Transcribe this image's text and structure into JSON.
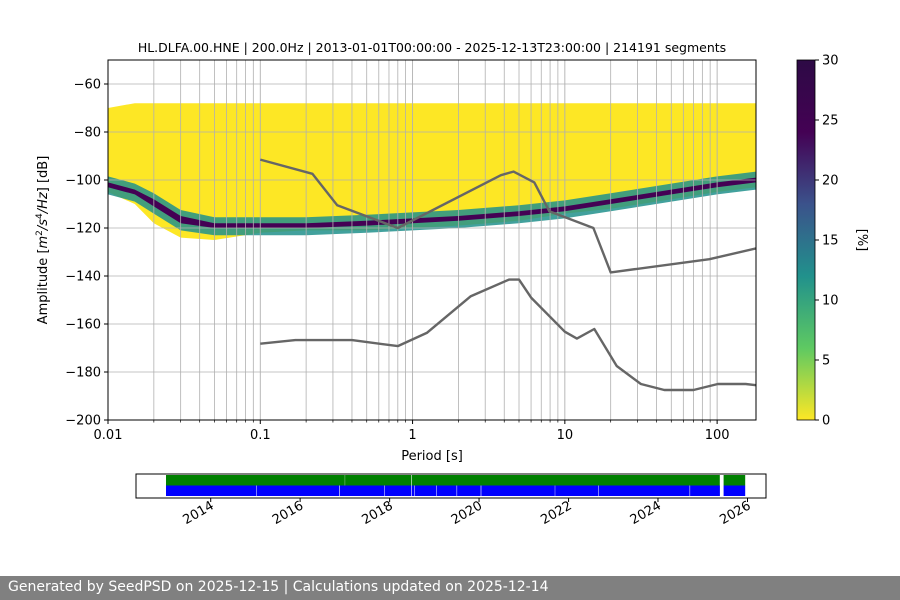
{
  "chart_data": [
    {
      "type": "heatmap",
      "title": "HL.DLFA.00.HNE | 200.0Hz | 2013-01-01T00:00:00 - 2025-12-13T23:00:00 | 214191 segments",
      "xlabel": "Period [s]",
      "ylabel": "Amplitude [m²/s⁴/Hz] [dB]",
      "xscale": "log",
      "xlim": [
        0.01,
        180
      ],
      "ylim": [
        -200,
        -50
      ],
      "x_ticks": [
        {
          "value": 0.01,
          "label": "0.01"
        },
        {
          "value": 0.1,
          "label": "0.1"
        },
        {
          "value": 1,
          "label": "1"
        },
        {
          "value": 10,
          "label": "10"
        },
        {
          "value": 100,
          "label": "100"
        }
      ],
      "y_ticks": [
        {
          "value": -60,
          "label": "−60"
        },
        {
          "value": -80,
          "label": "−80"
        },
        {
          "value": -100,
          "label": "−100"
        },
        {
          "value": -120,
          "label": "−120"
        },
        {
          "value": -140,
          "label": "−140"
        },
        {
          "value": -160,
          "label": "−160"
        },
        {
          "value": -180,
          "label": "−180"
        },
        {
          "value": -200,
          "label": "−200"
        }
      ],
      "grid": true,
      "colorbar": {
        "label": "[%]",
        "range": [
          0,
          30
        ],
        "ticks": [
          {
            "value": 0,
            "label": "0"
          },
          {
            "value": 5,
            "label": "5"
          },
          {
            "value": 10,
            "label": "10"
          },
          {
            "value": 15,
            "label": "15"
          },
          {
            "value": 20,
            "label": "20"
          },
          {
            "value": 25,
            "label": "25"
          },
          {
            "value": 30,
            "label": "30"
          }
        ],
        "colors": [
          "#fde725",
          "#5ec962",
          "#21918c",
          "#3b528b",
          "#440154",
          "#2d0a45"
        ]
      },
      "density_band": {
        "x": [
          0.01,
          0.015,
          0.02,
          0.03,
          0.05,
          0.1,
          0.2,
          0.5,
          1,
          2,
          5,
          10,
          20,
          50,
          100,
          180
        ],
        "upper": [
          -101,
          -104,
          -108,
          -115,
          -118,
          -118,
          -118,
          -117,
          -116,
          -115,
          -113,
          -111,
          -108,
          -104,
          -101,
          -99
        ],
        "lower": [
          -103,
          -106,
          -111,
          -118,
          -120,
          -120,
          -120,
          -119,
          -118,
          -117,
          -115,
          -113,
          -110,
          -106,
          -103,
          -101
        ],
        "yellow_top": [
          -70,
          -68,
          -68,
          -68,
          -68,
          -68,
          -68,
          -68,
          -68,
          -68,
          -68,
          -68,
          -68,
          -68,
          -68,
          -68
        ],
        "yellow_bottom": [
          -105,
          -110,
          -118,
          -124,
          -125,
          -122,
          -121,
          -121,
          -120,
          -119,
          -117,
          -114,
          -112,
          -108,
          -105,
          -103
        ]
      },
      "series": [
        {
          "type": "line",
          "color": "#666666",
          "x": [
            0.1,
            0.22,
            0.32,
            0.8,
            3.8,
            4.6,
            6.3,
            7.9,
            15.4,
            20,
            89,
            180
          ],
          "y": [
            -91.5,
            -97.4,
            -110.5,
            -120,
            -98,
            -96.5,
            -101,
            -113,
            -120,
            -138.5,
            -133,
            -128.5
          ]
        },
        {
          "type": "line",
          "color": "#666666",
          "x": [
            0.1,
            0.17,
            0.4,
            0.8,
            1.24,
            2.4,
            4.3,
            5.0,
            6.0,
            10,
            12,
            15.6,
            21.9,
            31.6,
            45,
            70,
            101,
            154,
            180
          ],
          "y": [
            -168.2,
            -166.7,
            -166.7,
            -169.2,
            -163.7,
            -148.5,
            -141.5,
            -141.5,
            -149,
            -163.2,
            -166.1,
            -162.1,
            -177.5,
            -185,
            -187.5,
            -187.5,
            -185,
            -185,
            -185.5
          ]
        }
      ]
    },
    {
      "type": "timeline",
      "xlim": [
        "2012-05-01",
        "2026-06-01"
      ],
      "x_ticks": [
        {
          "value": "2014-01-01",
          "label": "2014"
        },
        {
          "value": "2016-01-01",
          "label": "2016"
        },
        {
          "value": "2018-01-01",
          "label": "2018"
        },
        {
          "value": "2020-01-01",
          "label": "2020"
        },
        {
          "value": "2022-01-01",
          "label": "2022"
        },
        {
          "value": "2024-01-01",
          "label": "2024"
        },
        {
          "value": "2026-01-01",
          "label": "2026"
        }
      ],
      "tracks": [
        {
          "color": "#008000",
          "segments": [
            [
              "2013-01-01",
              "2016-12-31"
            ],
            [
              "2017-01-02",
              "2018-06-25"
            ],
            [
              "2018-06-30",
              "2025-05-20"
            ],
            [
              "2025-06-20",
              "2025-12-13"
            ]
          ]
        },
        {
          "color": "#0000ff",
          "segments": [
            [
              "2013-01-01",
              "2015-01-08"
            ],
            [
              "2015-01-12",
              "2016-11-15"
            ],
            [
              "2016-11-20",
              "2017-11-20"
            ],
            [
              "2017-11-24",
              "2018-06-25"
            ],
            [
              "2018-06-30",
              "2018-07-20"
            ],
            [
              "2018-07-24",
              "2019-01-18"
            ],
            [
              "2019-01-22",
              "2019-07-02"
            ],
            [
              "2019-07-06",
              "2020-01-15"
            ],
            [
              "2020-01-19",
              "2021-09-10"
            ],
            [
              "2021-09-14",
              "2022-08-31"
            ],
            [
              "2022-09-04",
              "2024-09-15"
            ],
            [
              "2024-09-19",
              "2025-05-20"
            ],
            [
              "2025-06-20",
              "2025-12-13"
            ]
          ]
        }
      ]
    }
  ],
  "footer": {
    "text": "Generated by SeedPSD on 2025-12-15 | Calculations updated on 2025-12-14"
  }
}
